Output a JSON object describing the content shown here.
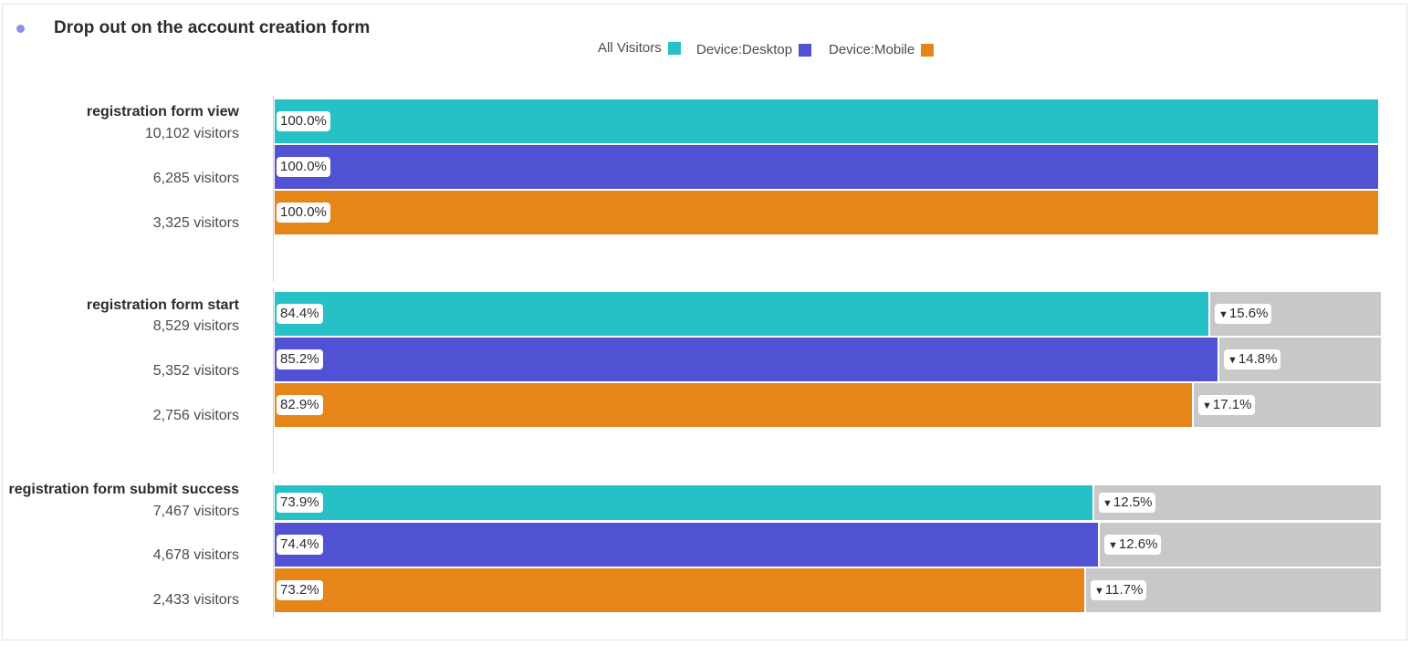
{
  "title": "Drop out on the account creation form",
  "colors": {
    "title_dot": "#8f8ee8",
    "drop_fill": "#c8c8c8"
  },
  "icons": {
    "drop": "down-triangle-icon",
    "title_marker": "dot-icon"
  },
  "chart_data": {
    "type": "bar",
    "orientation": "horizontal-funnel",
    "value_unit": "%",
    "xlim": [
      0,
      100
    ],
    "legend": {
      "position": "top-center",
      "entries": [
        "All Visitors",
        "Device:Desktop",
        "Device:Mobile"
      ]
    },
    "series": [
      {
        "name": "All Visitors",
        "color": "#26c0c7"
      },
      {
        "name": "Device:Desktop",
        "color": "#5151d3"
      },
      {
        "name": "Device:Mobile",
        "color": "#e68619"
      }
    ],
    "steps": [
      {
        "label": "registration form view",
        "rows": [
          {
            "visitors": "10,102 visitors",
            "value": 100.0,
            "label": "100.0%",
            "drop": null,
            "drop_label": ""
          },
          {
            "visitors": "6,285 visitors",
            "value": 100.0,
            "label": "100.0%",
            "drop": null,
            "drop_label": ""
          },
          {
            "visitors": "3,325 visitors",
            "value": 100.0,
            "label": "100.0%",
            "drop": null,
            "drop_label": ""
          }
        ]
      },
      {
        "label": "registration form start",
        "rows": [
          {
            "visitors": "8,529 visitors",
            "value": 84.4,
            "label": "84.4%",
            "drop": 15.6,
            "drop_label": "15.6%"
          },
          {
            "visitors": "5,352 visitors",
            "value": 85.2,
            "label": "85.2%",
            "drop": 14.8,
            "drop_label": "14.8%"
          },
          {
            "visitors": "2,756 visitors",
            "value": 82.9,
            "label": "82.9%",
            "drop": 17.1,
            "drop_label": "17.1%"
          }
        ]
      },
      {
        "label": "registration form submit success",
        "rows": [
          {
            "visitors": "7,467 visitors",
            "value": 73.9,
            "label": "73.9%",
            "drop": 12.5,
            "drop_label": "12.5%"
          },
          {
            "visitors": "4,678 visitors",
            "value": 74.4,
            "label": "74.4%",
            "drop": 12.6,
            "drop_label": "12.6%"
          },
          {
            "visitors": "2,433 visitors",
            "value": 73.2,
            "label": "73.2%",
            "drop": 11.7,
            "drop_label": "11.7%"
          }
        ]
      }
    ]
  }
}
